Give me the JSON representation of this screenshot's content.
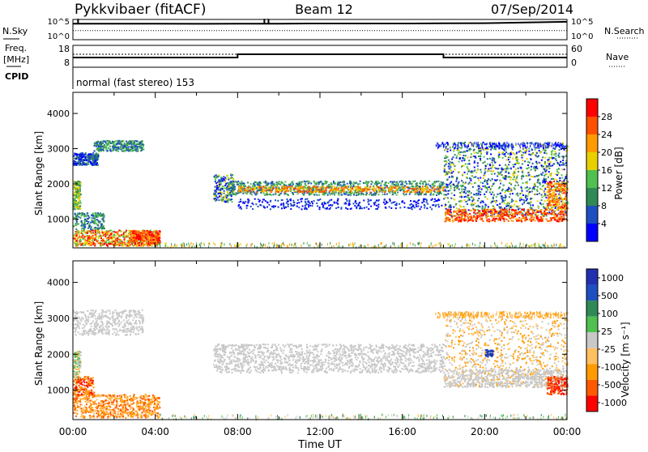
{
  "header": {
    "station": "Pykkvibaer (fitACF)",
    "beam": "Beam 12",
    "date": "07/Sep/2014"
  },
  "panel_labels": {
    "nsky": "N.Sky",
    "nsearch": "N.Search",
    "freq": "Freq.",
    "freq_unit": "[MHz]",
    "nave": "Nave",
    "cpid": "CPID",
    "cpid_text": "normal (fast stereo) 153"
  },
  "colors": {
    "scale_power": [
      "#0000ff",
      "#1e4fc0",
      "#2f8a55",
      "#50c050",
      "#e8d000",
      "#ff9a00",
      "#ff5000",
      "#ff0000"
    ],
    "scale_velocity": [
      "#ff0000",
      "#ff5a00",
      "#ff9a00",
      "#ffc060",
      "#c8c8c8",
      "#50c050",
      "#2f8a55",
      "#1e4fc0",
      "#2030b0"
    ],
    "ground_scatter": "#c8c8c8"
  },
  "chart_data": [
    {
      "type": "line",
      "name": "noise",
      "left_labels": [
        "10^5",
        "10^0"
      ],
      "right_labels": [
        "10^5",
        "10^0"
      ],
      "series": [
        {
          "name": "N.Sky",
          "x": [
            0,
            2,
            4,
            6,
            8,
            10,
            12,
            14,
            16,
            18,
            20,
            22,
            24
          ],
          "values": [
            9.5,
            9.5,
            9.5,
            9.4,
            9.5,
            9.5,
            9.6,
            9.6,
            9.6,
            9.7,
            9.8,
            10.2,
            10.6
          ]
        },
        {
          "name": "N.Search",
          "x": [
            0,
            24
          ],
          "values": [
            5.4,
            5.4
          ]
        }
      ],
      "ylim": [
        0,
        12
      ]
    },
    {
      "type": "line",
      "name": "frequency",
      "left_ticks": [
        8,
        18
      ],
      "right_ticks": [
        0,
        60
      ],
      "series": [
        {
          "name": "Freq.",
          "x": [
            0,
            8,
            8,
            18,
            18,
            24
          ],
          "values": [
            11.7,
            11.7,
            13.2,
            13.2,
            11.7,
            11.7
          ]
        },
        {
          "name": "Nave",
          "x": [
            0,
            24
          ],
          "values": [
            60,
            60
          ]
        }
      ]
    },
    {
      "type": "heatmap",
      "name": "power",
      "xlabel": "",
      "ylabel": "Slant Range [km]",
      "colorbar_label": "Power [dB]",
      "colorbar_ticks": [
        4,
        8,
        12,
        16,
        20,
        24,
        28
      ],
      "ylim": [
        180,
        4600
      ],
      "y_ticks": [
        1000,
        2000,
        3000,
        4000
      ],
      "xlim": [
        0,
        24
      ],
      "scatter_bands": [
        {
          "t0": 0.0,
          "t1": 3.4,
          "r0": 2500,
          "r1": 3300,
          "values": [
            6,
            7,
            8,
            8,
            9
          ]
        },
        {
          "t0": 0.0,
          "t1": 0.4,
          "r0": 1300,
          "r1": 2100,
          "values": [
            10,
            12,
            14
          ]
        },
        {
          "t0": 0.0,
          "t1": 4.2,
          "r0": 250,
          "r1": 900,
          "values": [
            8,
            14,
            22,
            28,
            26
          ]
        },
        {
          "t0": 6.8,
          "t1": 18.0,
          "r0": 1400,
          "r1": 2200,
          "values": [
            8,
            12,
            16,
            20
          ]
        },
        {
          "t0": 18.0,
          "t1": 24.0,
          "r0": 900,
          "r1": 3200,
          "values": [
            6,
            10,
            14,
            18,
            24,
            28
          ]
        }
      ]
    },
    {
      "type": "heatmap",
      "name": "velocity",
      "xlabel": "Time UT",
      "ylabel": "Slant Range [km]",
      "colorbar_label": "Velocity [m s⁻¹]",
      "colorbar_ticks": [
        1000,
        500,
        100,
        25,
        -25,
        -100,
        -500,
        -1000
      ],
      "ylim": [
        180,
        4600
      ],
      "y_ticks": [
        1000,
        2000,
        3000,
        4000
      ],
      "x_ticks": [
        "00:00",
        "04:00",
        "08:00",
        "12:00",
        "16:00",
        "20:00",
        "00:00"
      ],
      "xlim": [
        0,
        24
      ]
    }
  ]
}
